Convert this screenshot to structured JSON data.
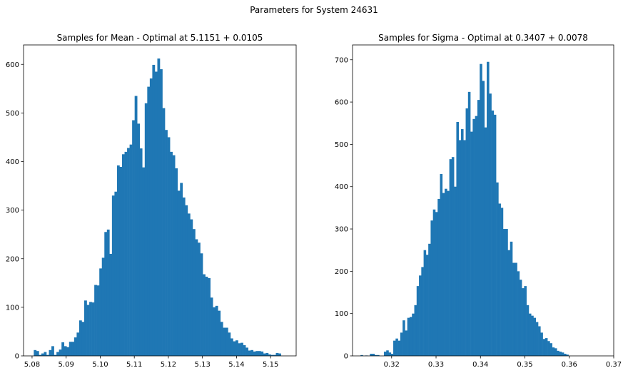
{
  "figure": {
    "suptitle": "Parameters for System 24631"
  },
  "chart_data": [
    {
      "type": "bar",
      "title": "Samples for Mean - Optimal at 5.1151 + 0.0105",
      "xlabel": "",
      "ylabel": "",
      "xlim": [
        5.0775,
        5.1575
      ],
      "ylim": [
        0,
        640
      ],
      "xticks": [
        5.08,
        5.09,
        5.1,
        5.11,
        5.12,
        5.13,
        5.14,
        5.15
      ],
      "xticklabels": [
        "5.08",
        "5.09",
        "5.10",
        "5.11",
        "5.12",
        "5.13",
        "5.14",
        "5.15"
      ],
      "yticks": [
        0,
        100,
        200,
        300,
        400,
        500,
        600
      ],
      "yticklabels": [
        "0",
        "100",
        "200",
        "300",
        "400",
        "500",
        "600"
      ],
      "bin_start": 5.0805,
      "bin_width": 0.00074,
      "color": "#1f77b4",
      "values": [
        12,
        10,
        2,
        5,
        8,
        2,
        12,
        20,
        2,
        8,
        13,
        28,
        20,
        18,
        29,
        29,
        38,
        48,
        73,
        70,
        114,
        105,
        111,
        110,
        146,
        145,
        180,
        202,
        255,
        260,
        210,
        330,
        338,
        392,
        389,
        415,
        420,
        428,
        435,
        485,
        535,
        478,
        427,
        388,
        520,
        554,
        571,
        599,
        585,
        612,
        590,
        510,
        465,
        450,
        420,
        413,
        386,
        340,
        356,
        326,
        310,
        293,
        281,
        261,
        240,
        233,
        211,
        168,
        163,
        160,
        120,
        100,
        103,
        93,
        70,
        58,
        58,
        48,
        36,
        30,
        32,
        26,
        27,
        22,
        17,
        11,
        12,
        9,
        10,
        10,
        9,
        5,
        6,
        3,
        2,
        2,
        6,
        5
      ]
    },
    {
      "type": "bar",
      "title": "Samples for Sigma - Optimal at 0.3407 + 0.0078",
      "xlabel": "",
      "ylabel": "",
      "xlim": [
        0.3112,
        0.37
      ],
      "ylim": [
        0,
        735
      ],
      "xticks": [
        0.32,
        0.33,
        0.34,
        0.35,
        0.36,
        0.37
      ],
      "xticklabels": [
        "0.32",
        "0.33",
        "0.34",
        "0.35",
        "0.36",
        "0.37"
      ],
      "yticks": [
        0,
        100,
        200,
        300,
        400,
        500,
        600,
        700
      ],
      "yticklabels": [
        "0",
        "100",
        "200",
        "300",
        "400",
        "500",
        "600",
        "700"
      ],
      "bin_start": 0.313,
      "bin_width": 0.000526,
      "color": "#1f77b4",
      "values": [
        2,
        0,
        1,
        0,
        5,
        5,
        2,
        2,
        0,
        0,
        10,
        13,
        8,
        5,
        36,
        41,
        36,
        55,
        84,
        60,
        90,
        92,
        100,
        120,
        165,
        190,
        210,
        250,
        239,
        265,
        320,
        346,
        340,
        371,
        430,
        385,
        395,
        390,
        465,
        470,
        400,
        553,
        510,
        536,
        510,
        585,
        624,
        530,
        560,
        567,
        605,
        690,
        650,
        540,
        695,
        620,
        580,
        570,
        410,
        360,
        350,
        300,
        300,
        250,
        270,
        220,
        220,
        200,
        180,
        160,
        165,
        120,
        100,
        95,
        90,
        80,
        70,
        55,
        40,
        42,
        35,
        30,
        20,
        18,
        12,
        10,
        8,
        5,
        3
      ]
    }
  ]
}
